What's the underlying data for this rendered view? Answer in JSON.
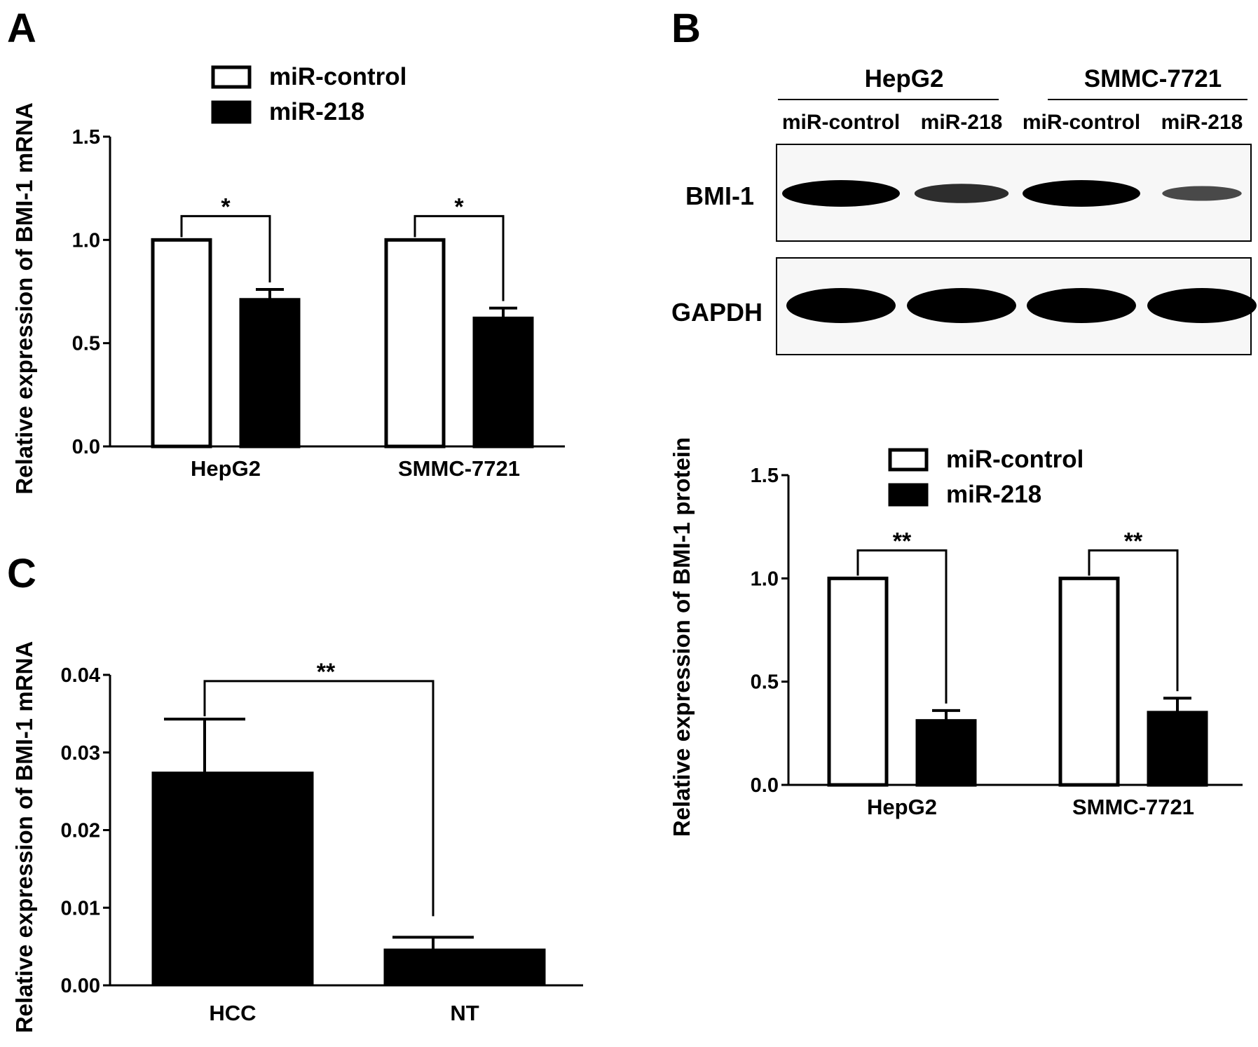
{
  "panels": {
    "A": "A",
    "B": "B",
    "C": "C"
  },
  "colors": {
    "control_fill": "#ffffff",
    "treatment_fill": "#000000",
    "stroke": "#000000"
  },
  "blot": {
    "cell_lines": [
      "HepG2",
      "SMMC-7721"
    ],
    "lanes": [
      "miR-control",
      "miR-218",
      "miR-control",
      "miR-218"
    ],
    "rows": [
      "BMI-1",
      "GAPDH"
    ],
    "bmi1_band_intensity": [
      1.0,
      0.6,
      1.0,
      0.35
    ],
    "gapdh_band_intensity": [
      1.0,
      1.0,
      1.0,
      1.0
    ]
  },
  "chart_data": [
    {
      "id": "A",
      "type": "bar",
      "ylabel": "Relative expression of BMI-1 mRNA",
      "xlabel": "",
      "ylim": [
        0,
        1.5
      ],
      "yticks": [
        "0.0",
        "0.5",
        "1.0",
        "1.5"
      ],
      "categories": [
        "HepG2",
        "SMMC-7721"
      ],
      "series": [
        {
          "name": "miR-control",
          "values": [
            1.0,
            1.0
          ],
          "errors": [
            0,
            0
          ]
        },
        {
          "name": "miR-218",
          "values": [
            0.71,
            0.62
          ],
          "errors": [
            0.05,
            0.05
          ]
        }
      ],
      "significance": [
        "*",
        "*"
      ],
      "legend": "top"
    },
    {
      "id": "B",
      "type": "bar",
      "ylabel": "Relative expression of BMI-1 protein",
      "xlabel": "",
      "ylim": [
        0,
        1.5
      ],
      "yticks": [
        "0.0",
        "0.5",
        "1.0",
        "1.5"
      ],
      "categories": [
        "HepG2",
        "SMMC-7721"
      ],
      "series": [
        {
          "name": "miR-control",
          "values": [
            1.0,
            1.0
          ],
          "errors": [
            0,
            0
          ]
        },
        {
          "name": "miR-218",
          "values": [
            0.31,
            0.35
          ],
          "errors": [
            0.05,
            0.07
          ]
        }
      ],
      "significance": [
        "**",
        "**"
      ],
      "legend": "top"
    },
    {
      "id": "C",
      "type": "bar",
      "ylabel": "Relative expression of BMI-1 mRNA",
      "xlabel": "",
      "ylim": [
        0,
        0.04
      ],
      "yticks": [
        "0.00",
        "0.01",
        "0.02",
        "0.03",
        "0.04"
      ],
      "categories": [
        "HCC",
        "NT"
      ],
      "values": [
        0.0274,
        0.0046
      ],
      "errors": [
        0.0069,
        0.0016
      ],
      "significance": "**"
    }
  ]
}
